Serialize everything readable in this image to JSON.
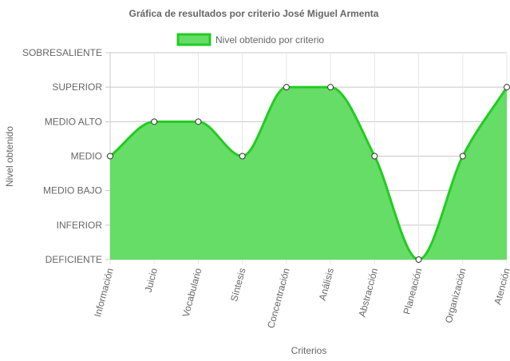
{
  "chart_data": {
    "type": "area",
    "title": "Gráfica de resultados por criterio José Miguel Armenta",
    "xlabel": "Criterios",
    "ylabel": "Nivel obtenido",
    "legend_position": "top",
    "y_levels": [
      "DEFICIENTE",
      "INFERIOR",
      "MEDIO BAJO",
      "MEDIO",
      "MEDIO ALTO",
      "SUPERIOR",
      "SOBRESALIENTE"
    ],
    "categories": [
      "Información",
      "Juicio",
      "Vocabulario",
      "Síntesis",
      "Concentración",
      "Análisis",
      "Abstracción",
      "Planeación",
      "Organización",
      "Atención"
    ],
    "ylim": [
      0,
      6
    ],
    "grid": true,
    "series": [
      {
        "name": "Nivel obtenido por criterio",
        "values": [
          3,
          4,
          4,
          3,
          5,
          5,
          3,
          0,
          3,
          5
        ],
        "fill_color": "#66dd66",
        "line_color": "#22cc22"
      }
    ]
  }
}
